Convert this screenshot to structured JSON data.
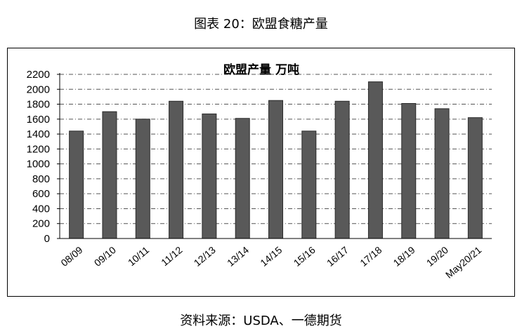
{
  "figure": {
    "title": "图表 20：欧盟食糖产量",
    "source": "资料来源：USDA、一德期货"
  },
  "chart_data": {
    "type": "bar",
    "title": "欧盟产量 万吨",
    "categories": [
      "08/09",
      "09/10",
      "10/11",
      "11/12",
      "12/13",
      "13/14",
      "14/15",
      "15/16",
      "16/17",
      "17/18",
      "18/19",
      "19/20",
      "May20/21"
    ],
    "values": [
      1440,
      1700,
      1600,
      1840,
      1670,
      1610,
      1850,
      1440,
      1840,
      2100,
      1810,
      1740,
      1620
    ],
    "yticks": [
      0,
      200,
      400,
      600,
      800,
      1000,
      1200,
      1400,
      1600,
      1800,
      2000,
      2200
    ],
    "ylim": [
      0,
      2200
    ],
    "grid": true,
    "legend": "none",
    "colors": {
      "bar": "#595959",
      "bar_edge": "#2b2b2b",
      "grid": "#555555"
    }
  }
}
